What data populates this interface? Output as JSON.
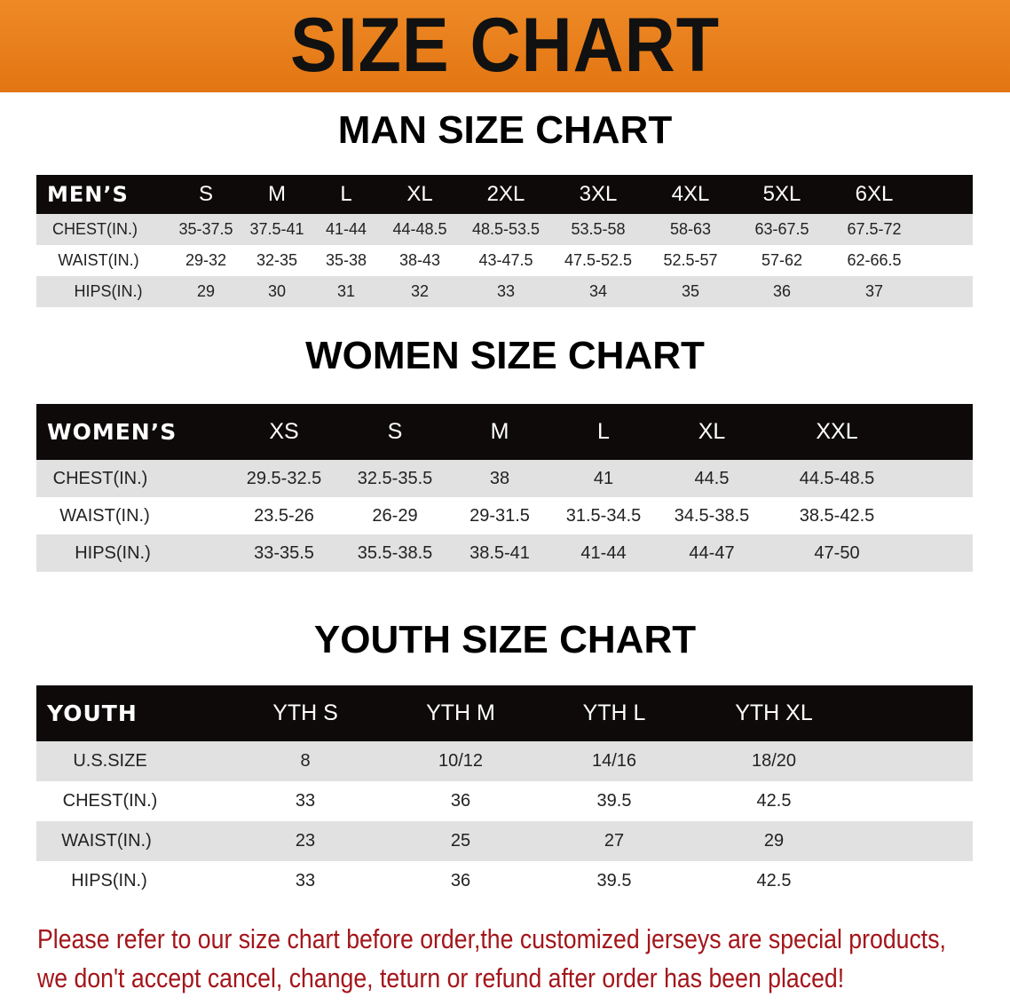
{
  "banner_title": "SIZE CHART",
  "men": {
    "title": "MAN SIZE CHART",
    "header": [
      "MEN’S",
      "S",
      "M",
      "L",
      "XL",
      "2XL",
      "3XL",
      "4XL",
      "5XL",
      "6XL"
    ],
    "rows": [
      [
        "CHEST(IN.)",
        "35-37.5",
        "37.5-41",
        "41-44",
        "44-48.5",
        "48.5-53.5",
        "53.5-58",
        "58-63",
        "63-67.5",
        "67.5-72"
      ],
      [
        "WAIST(IN.)",
        "29-32",
        "32-35",
        "35-38",
        "38-43",
        "43-47.5",
        "47.5-52.5",
        "52.5-57",
        "57-62",
        "62-66.5"
      ],
      [
        "HIPS(IN.)",
        "29",
        "30",
        "31",
        "32",
        "33",
        "34",
        "35",
        "36",
        "37"
      ]
    ]
  },
  "women": {
    "title": "WOMEN SIZE CHART",
    "header": [
      "WOMEN’S",
      "XS",
      "S",
      "M",
      "L",
      "XL",
      "XXL"
    ],
    "rows": [
      [
        "CHEST(IN.)",
        "29.5-32.5",
        "32.5-35.5",
        "38",
        "41",
        "44.5",
        "44.5-48.5"
      ],
      [
        "WAIST(IN.)",
        "23.5-26",
        "26-29",
        "29-31.5",
        "31.5-34.5",
        "34.5-38.5",
        "38.5-42.5"
      ],
      [
        "HIPS(IN.)",
        "33-35.5",
        "35.5-38.5",
        "38.5-41",
        "41-44",
        "44-47",
        "47-50"
      ]
    ]
  },
  "youth": {
    "title": "YOUTH SIZE CHART",
    "header": [
      "YOUTH",
      "YTH S",
      "YTH M",
      "YTH L",
      "YTH XL"
    ],
    "rows": [
      [
        "U.S.SIZE",
        "8",
        "10/12",
        "14/16",
        "18/20"
      ],
      [
        "CHEST(IN.)",
        "33",
        "36",
        "39.5",
        "42.5"
      ],
      [
        "WAIST(IN.)",
        "23",
        "25",
        "27",
        "29"
      ],
      [
        "HIPS(IN.)",
        "33",
        "36",
        "39.5",
        "42.5"
      ]
    ]
  },
  "note": {
    "line1": "Please refer to our size chart before order,the customized jerseys are special products,",
    "line2": "we don't accept cancel, change, teturn or refund after order has been placed!"
  },
  "colors": {
    "banner": "#e87b1c",
    "note": "#a3161b",
    "header_bg": "#0e0a0a",
    "row_gray": "#e1e1e1"
  }
}
